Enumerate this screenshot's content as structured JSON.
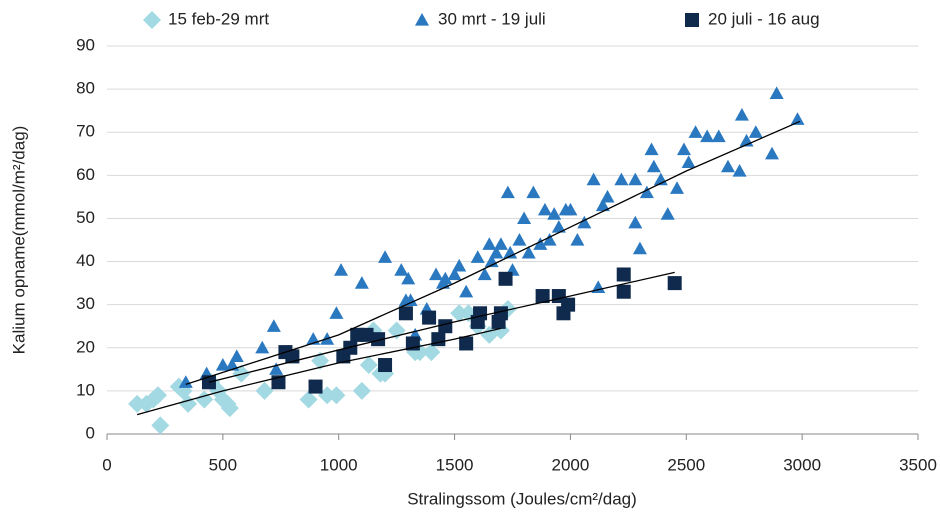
{
  "chart_data": {
    "type": "scatter",
    "x_label": "Stralingssom (Joules/cm²/dag)",
    "y_label": "Kalium opname(mmol/m²/dag)",
    "xlim": [
      0,
      3500
    ],
    "xticks": [
      0,
      500,
      1000,
      1500,
      2000,
      2500,
      3000,
      3500
    ],
    "ylim": [
      0,
      90
    ],
    "yticks": [
      0,
      10,
      20,
      30,
      40,
      50,
      60,
      70,
      80,
      90
    ],
    "grid": true,
    "legend": "top",
    "series": [
      {
        "name": "15 feb-29 mrt",
        "color": "#a3d9e2",
        "marker": "diamond",
        "x": [
          130,
          170,
          200,
          220,
          230,
          310,
          330,
          350,
          420,
          450,
          480,
          500,
          520,
          530,
          580,
          680,
          870,
          920,
          950,
          990,
          1100,
          1130,
          1150,
          1180,
          1200,
          1250,
          1330,
          1350,
          1400,
          1520,
          1560,
          1600,
          1650,
          1700,
          1730
        ],
        "values": [
          7,
          7,
          8,
          9,
          2,
          11,
          10,
          7,
          8,
          12,
          10,
          8,
          7,
          6,
          14,
          10,
          8,
          17,
          9,
          9,
          10,
          16,
          24,
          14,
          14,
          24,
          19,
          19,
          19,
          28,
          28,
          25,
          23,
          24,
          29
        ],
        "trendline": {
          "x": [
            130,
            500,
            1000,
            1500,
            1700
          ],
          "y": [
            4.5,
            10,
            16.5,
            22,
            24.5
          ]
        }
      },
      {
        "name": "30 mrt - 19 juli",
        "color": "#2a78c0",
        "marker": "triangle",
        "x": [
          340,
          430,
          500,
          540,
          560,
          670,
          720,
          730,
          890,
          950,
          990,
          1010,
          1100,
          1110,
          1170,
          1200,
          1270,
          1290,
          1300,
          1310,
          1330,
          1380,
          1420,
          1450,
          1460,
          1500,
          1520,
          1550,
          1600,
          1630,
          1650,
          1660,
          1680,
          1700,
          1730,
          1740,
          1750,
          1780,
          1800,
          1820,
          1840,
          1870,
          1890,
          1910,
          1930,
          1950,
          1980,
          2000,
          2030,
          2060,
          2100,
          2120,
          2140,
          2160,
          2220,
          2280,
          2280,
          2300,
          2330,
          2350,
          2360,
          2390,
          2420,
          2460,
          2490,
          2510,
          2540,
          2590,
          2640,
          2680,
          2730,
          2740,
          2760,
          2800,
          2870,
          2890,
          2980
        ],
        "values": [
          12,
          14,
          16,
          16,
          18,
          20,
          25,
          15,
          22,
          22,
          28,
          38,
          35,
          23,
          22,
          41,
          38,
          31,
          36,
          31,
          23,
          29,
          37,
          35,
          36,
          37,
          39,
          33,
          41,
          37,
          44,
          40,
          42,
          44,
          56,
          42,
          38,
          45,
          50,
          42,
          56,
          44,
          52,
          45,
          51,
          48,
          52,
          52,
          45,
          49,
          59,
          34,
          53,
          55,
          59,
          49,
          59,
          43,
          56,
          66,
          62,
          59,
          51,
          57,
          66,
          63,
          70,
          69,
          69,
          62,
          61,
          74,
          68,
          70,
          65,
          79,
          73
        ],
        "trendline": {
          "x": [
            340,
            1000,
            1500,
            2000,
            2500,
            2990
          ],
          "y": [
            11.5,
            23,
            35,
            48,
            61,
            72.5
          ]
        }
      },
      {
        "name": "20 juli - 16 aug",
        "color": "#0f2a4c",
        "marker": "square",
        "x": [
          440,
          740,
          770,
          800,
          900,
          1020,
          1050,
          1080,
          1120,
          1170,
          1200,
          1290,
          1320,
          1390,
          1430,
          1460,
          1550,
          1600,
          1610,
          1690,
          1700,
          1720,
          1880,
          1950,
          1970,
          1990,
          2230,
          2230,
          2450
        ],
        "values": [
          12,
          12,
          19,
          18,
          11,
          18,
          20,
          23,
          23,
          22,
          16,
          28,
          21,
          27,
          22,
          25,
          21,
          26,
          28,
          26,
          28,
          36,
          32,
          32,
          28,
          30,
          37,
          33,
          35
        ],
        "trendline": {
          "x": [
            440,
            1000,
            1500,
            2000,
            2450
          ],
          "y": [
            12,
            19.5,
            26,
            32,
            37.5
          ]
        }
      }
    ]
  }
}
